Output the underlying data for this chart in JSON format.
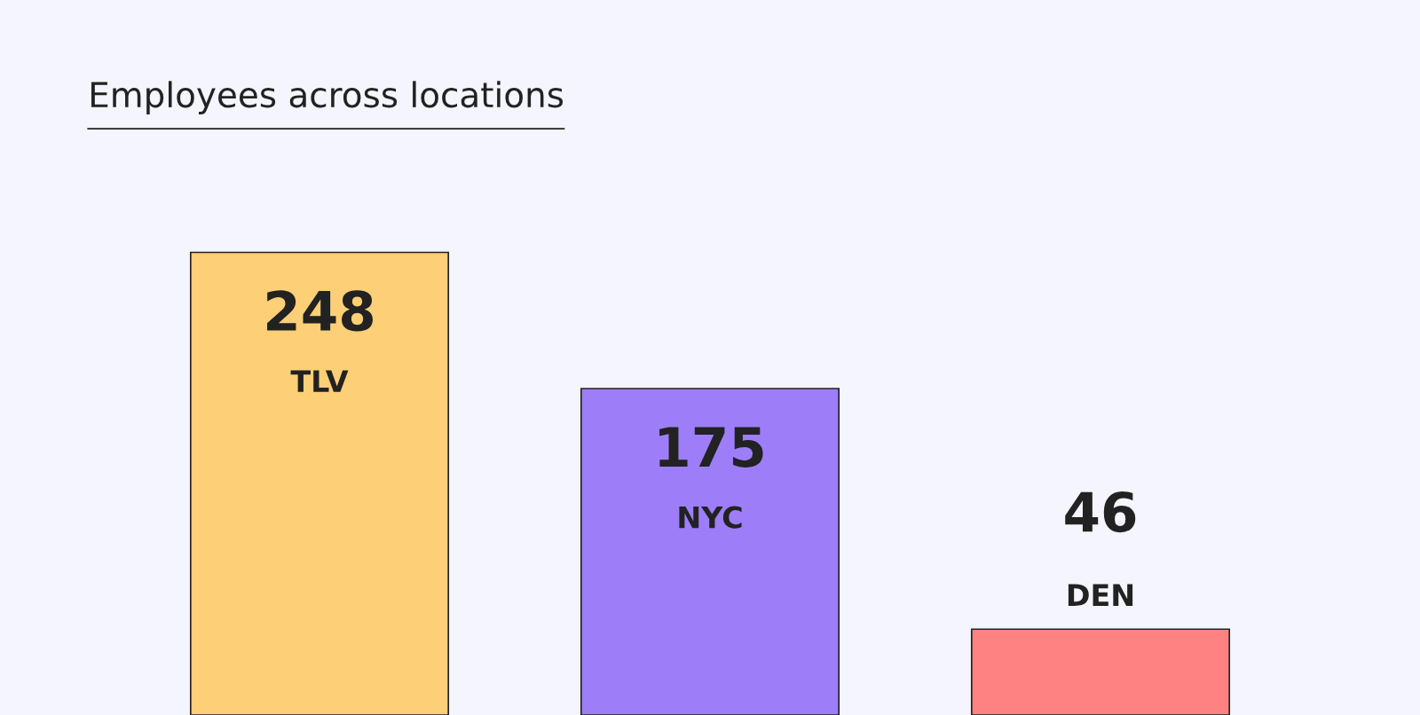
{
  "chart_data": {
    "type": "bar",
    "title": "Employees across locations",
    "categories": [
      "TLV",
      "NYC",
      "DEN"
    ],
    "values": [
      248,
      175,
      46
    ],
    "colors": [
      "#fdcf76",
      "#9d7ef8",
      "#ff8282"
    ],
    "data_labels": true
  }
}
